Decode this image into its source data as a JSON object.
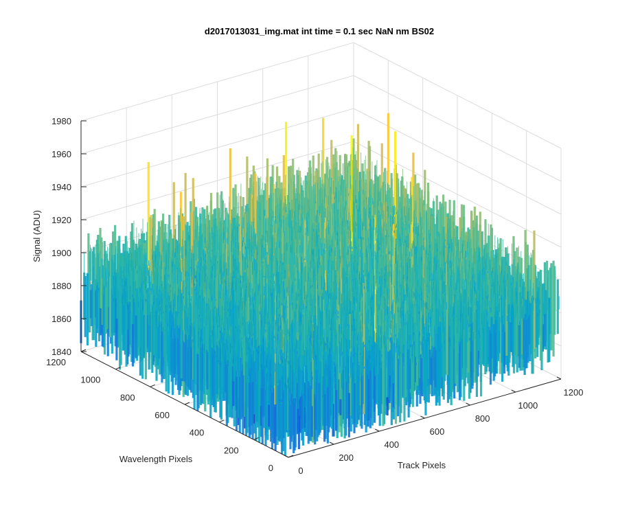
{
  "figure": {
    "background": "#ffffff",
    "axis_color": "#262626",
    "grid_color": "#dcdcdc"
  },
  "chart_data": {
    "type": "surface",
    "title": "d2017013031_img.mat int time = 0.1 sec  NaN nm BS02",
    "xlabel": "Track Pixels",
    "ylabel": "Wavelength Pixels",
    "zlabel": "Signal (ADU)",
    "xlim": [
      0,
      1200
    ],
    "ylim": [
      0,
      1200
    ],
    "zlim": [
      1840,
      1980
    ],
    "x_ticks": [
      0,
      200,
      400,
      600,
      800,
      1000,
      1200
    ],
    "y_ticks": [
      0,
      200,
      400,
      600,
      800,
      1000,
      1200
    ],
    "z_ticks": [
      1840,
      1860,
      1880,
      1900,
      1920,
      1940,
      1960,
      1980
    ],
    "grid": true,
    "colormap": "parula",
    "colormap_colors": [
      "#352a87",
      "#0f5cdd",
      "#1481d6",
      "#06a4ca",
      "#2eb7a4",
      "#87bf77",
      "#d1bb59",
      "#fec832",
      "#f9fb0e"
    ],
    "surface_summary": {
      "mean_level": 1885,
      "typical_range": [
        1850,
        1930
      ],
      "peak_max": 1972,
      "trend": "signal increases toward high track and high wavelength pixels"
    }
  }
}
